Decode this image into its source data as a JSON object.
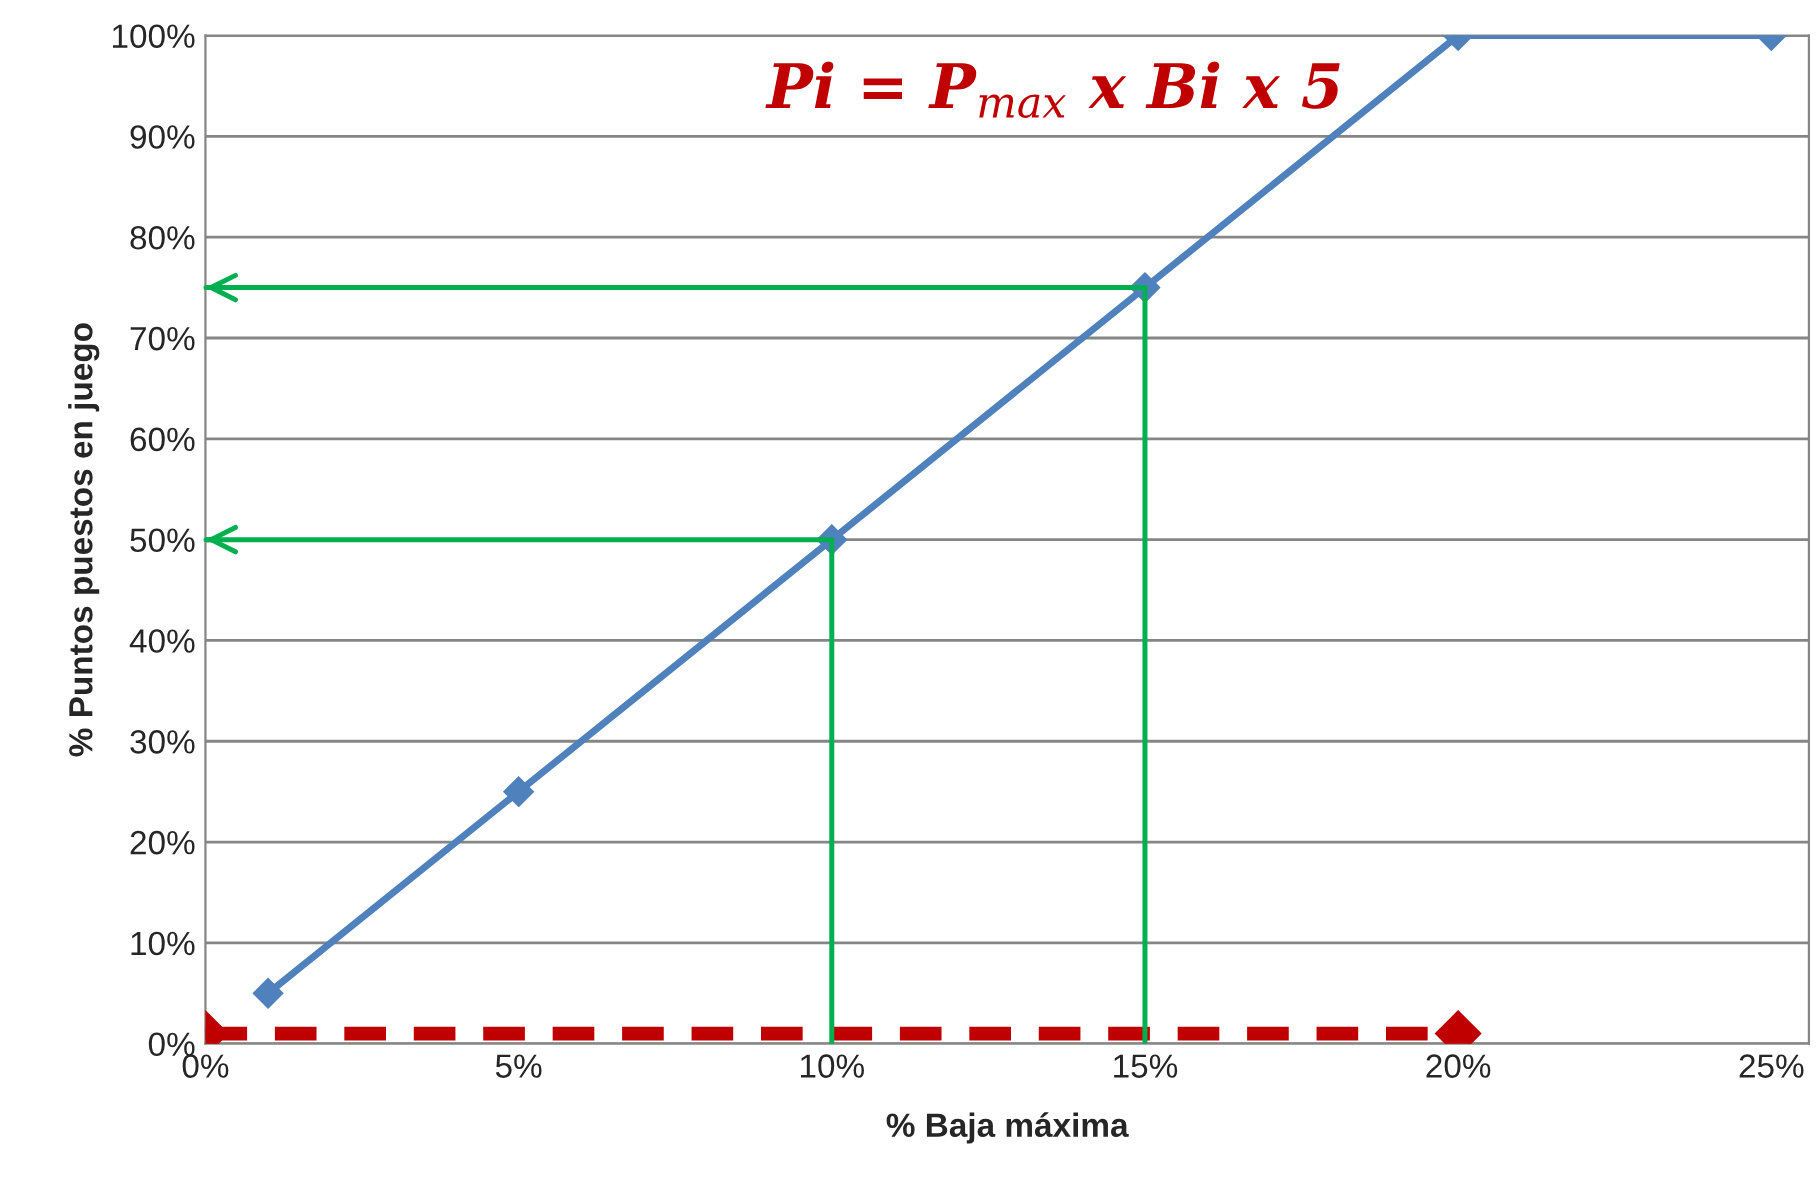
{
  "chart_data": {
    "type": "line",
    "xlabel": "% Baja máxima",
    "ylabel": "% Puntos puestos en juego",
    "annotations": [
      "Pi = P$_{max}$ x Bi x 5"
    ],
    "series": [
      {
        "color": "#4f81bd",
        "x": [
          1,
          5,
          10,
          15,
          20,
          25
        ],
        "values": [
          5,
          25,
          50,
          75,
          100,
          100
        ],
        "marker": "diamond",
        "line_style": "solid"
      },
      {
        "color": "#c00000",
        "x": [
          0,
          20
        ],
        "values": [
          1,
          1
        ],
        "marker": "diamond",
        "line_style": "dashed"
      },
      {
        "color": "#00b050",
        "x": [
          10,
          10,
          0
        ],
        "values": [
          0,
          50,
          50
        ],
        "marker": "none",
        "line_style": "solid"
      },
      {
        "color": "#00b050",
        "x": [
          15,
          15,
          0
        ],
        "values": [
          0,
          75,
          75
        ],
        "marker": "none",
        "line_style": "solid"
      }
    ],
    "xlim": [
      0,
      25.6
    ],
    "ylim": [
      0,
      100
    ],
    "xticks": [
      {
        "value": 0,
        "label": "0%"
      },
      {
        "value": 5,
        "label": "5%"
      },
      {
        "value": 10,
        "label": "10%"
      },
      {
        "value": 15,
        "label": "15%"
      },
      {
        "value": 20,
        "label": "20%"
      },
      {
        "value": 25,
        "label": "25%"
      }
    ],
    "yticks": [
      {
        "value": 0,
        "label": "0%"
      },
      {
        "value": 10,
        "label": "10%"
      },
      {
        "value": 20,
        "label": "20%"
      },
      {
        "value": 30,
        "label": "30%"
      },
      {
        "value": 40,
        "label": "40%"
      },
      {
        "value": 50,
        "label": "50%"
      },
      {
        "value": 60,
        "label": "60%"
      },
      {
        "value": 70,
        "label": "70%"
      },
      {
        "value": 80,
        "label": "80%"
      },
      {
        "value": 90,
        "label": "90%"
      },
      {
        "value": 100,
        "label": "100%"
      }
    ],
    "grid": "y",
    "legend": false
  }
}
